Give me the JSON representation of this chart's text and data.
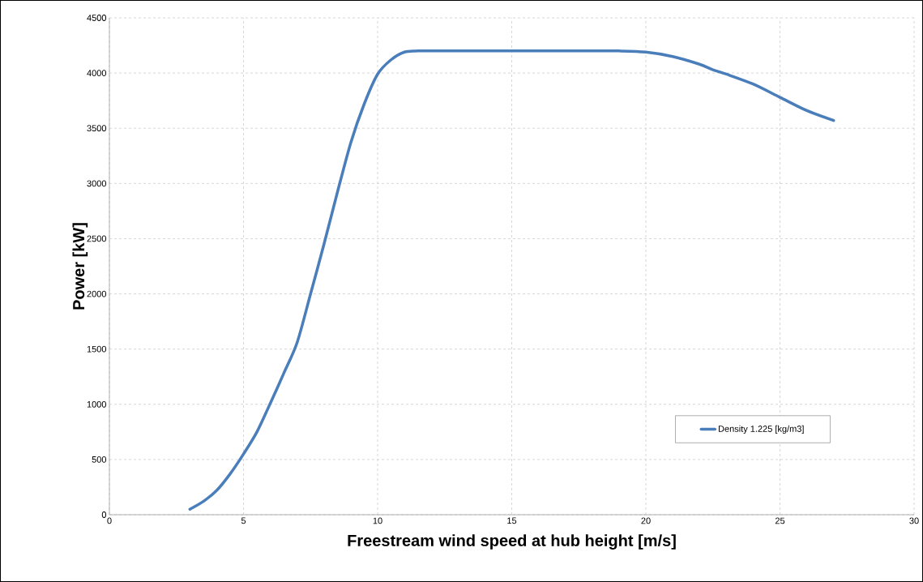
{
  "chart_data": {
    "type": "line",
    "xlabel": "Freestream wind speed at hub height [m/s]",
    "ylabel": "Power [kW]",
    "x": [
      3,
      3.5,
      4,
      4.5,
      5,
      5.5,
      6,
      6.5,
      7,
      7.5,
      8,
      8.5,
      9,
      9.5,
      10,
      10.5,
      11,
      11.5,
      12,
      13,
      14,
      15,
      16,
      17,
      18,
      19,
      20,
      21,
      22,
      22.5,
      23,
      24,
      25,
      26,
      27
    ],
    "series": [
      {
        "name": "Density 1.225 [kg/m3]",
        "color": "#4a7ebb",
        "values": [
          50,
          120,
          220,
          370,
          550,
          750,
          1010,
          1280,
          1560,
          2000,
          2450,
          2920,
          3370,
          3720,
          3990,
          4120,
          4190,
          4200,
          4200,
          4200,
          4200,
          4200,
          4200,
          4200,
          4200,
          4200,
          4190,
          4150,
          4080,
          4030,
          3990,
          3900,
          3780,
          3660,
          3570
        ]
      }
    ],
    "xlim": [
      0,
      30
    ],
    "xticks": [
      0,
      5,
      10,
      15,
      20,
      25,
      30
    ],
    "ylim": [
      0,
      4500
    ],
    "yticks": [
      0,
      500,
      1000,
      1500,
      2000,
      2500,
      3000,
      3500,
      4000,
      4500
    ],
    "grid": true,
    "legend": "bottom right",
    "marker": "none",
    "line_style": "solid"
  }
}
